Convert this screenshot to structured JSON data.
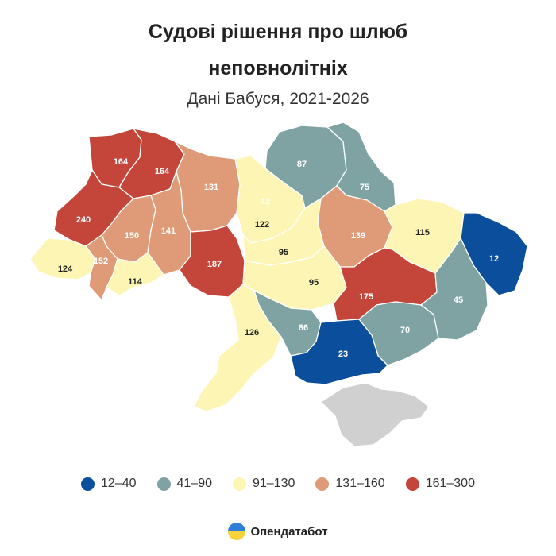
{
  "title_line1": "Судові рішення про шлюб",
  "title_line2": "неповнолітніх",
  "subtitle": "Дані Бабуся, 2021-2026",
  "legend": [
    {
      "label": "12–40",
      "color": "#0b4f9c"
    },
    {
      "label": "41–90",
      "color": "#7fa3a3"
    },
    {
      "label": "91–130",
      "color": "#fdf5b4"
    },
    {
      "label": "131–160",
      "color": "#df9b77"
    },
    {
      "label": "161–300",
      "color": "#c4463b"
    }
  ],
  "no_data_color": "#d0d0d0",
  "brand": "Опендатабот",
  "regions": [
    {
      "name": "Volyn",
      "value": "164",
      "color": "#c4463b"
    },
    {
      "name": "Rivne",
      "value": "164",
      "color": "#c4463b"
    },
    {
      "name": "Zhytomyr",
      "value": "131",
      "color": "#df9b77"
    },
    {
      "name": "Kyiv city",
      "value": "42",
      "color": "#7fa3a3"
    },
    {
      "name": "Kyiv oblast",
      "value": "122",
      "color": "#fdf5b4"
    },
    {
      "name": "Chernihiv",
      "value": "87",
      "color": "#7fa3a3"
    },
    {
      "name": "Sumy",
      "value": "75",
      "color": "#7fa3a3"
    },
    {
      "name": "Lviv",
      "value": "240",
      "color": "#c4463b"
    },
    {
      "name": "Ternopil",
      "value": "150",
      "color": "#df9b77"
    },
    {
      "name": "Khmelnytskyi",
      "value": "141",
      "color": "#df9b77"
    },
    {
      "name": "Zakarpattia",
      "value": "124",
      "color": "#fdf5b4"
    },
    {
      "name": "Ivano-Frankivsk",
      "value": "152",
      "color": "#df9b77"
    },
    {
      "name": "Chernivtsi",
      "value": "114",
      "color": "#fdf5b4"
    },
    {
      "name": "Vinnytsia",
      "value": "187",
      "color": "#c4463b"
    },
    {
      "name": "Cherkasy",
      "value": "95",
      "color": "#fdf5b4"
    },
    {
      "name": "Poltava",
      "value": "139",
      "color": "#df9b77"
    },
    {
      "name": "Kharkiv",
      "value": "115",
      "color": "#fdf5b4"
    },
    {
      "name": "Luhansk",
      "value": "12",
      "color": "#0b4f9c"
    },
    {
      "name": "Kirovohrad",
      "value": "95",
      "color": "#fdf5b4"
    },
    {
      "name": "Dnipropetrovsk",
      "value": "175",
      "color": "#c4463b"
    },
    {
      "name": "Donetsk",
      "value": "45",
      "color": "#7fa3a3"
    },
    {
      "name": "Odesa",
      "value": "126",
      "color": "#fdf5b4"
    },
    {
      "name": "Mykolaiv",
      "value": "86",
      "color": "#7fa3a3"
    },
    {
      "name": "Zaporizhzhia",
      "value": "70",
      "color": "#7fa3a3"
    },
    {
      "name": "Kherson",
      "value": "23",
      "color": "#0b4f9c"
    },
    {
      "name": "Crimea",
      "value": "",
      "color": "#d0d0d0"
    }
  ]
}
